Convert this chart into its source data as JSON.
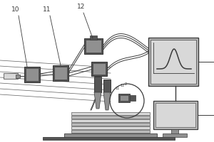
{
  "bg_color": "#ffffff",
  "lc": "#3a3a3a",
  "dark_gray": "#555555",
  "mid_gray": "#909090",
  "light_gray": "#bbbbbb",
  "lighter_gray": "#d8d8d8",
  "figsize": [
    3.0,
    2.0
  ],
  "dpi": 100
}
